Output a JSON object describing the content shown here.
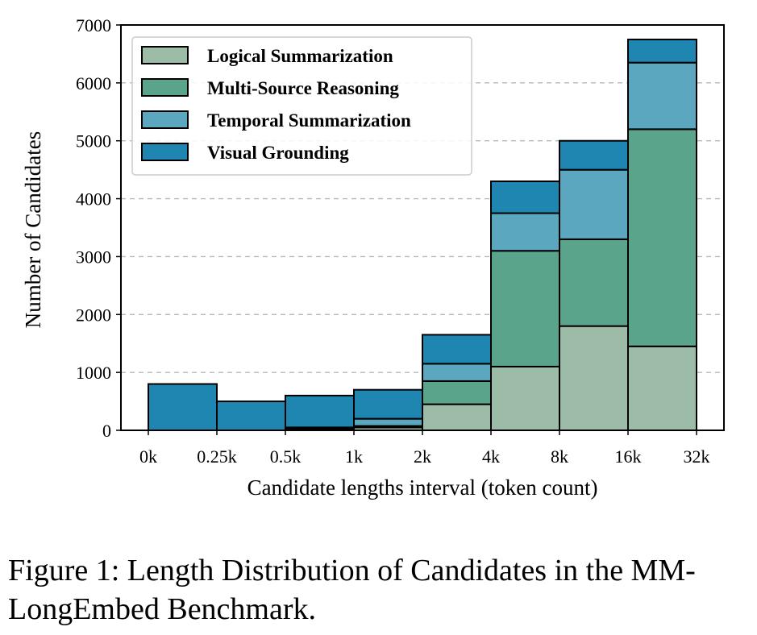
{
  "chart_data": {
    "type": "bar",
    "stacked": true,
    "categories": [
      "0k-0.25k",
      "0.25k-0.5k",
      "0.5k-1k",
      "1k-2k",
      "2k-4k",
      "4k-8k",
      "8k-16k",
      "16k-32k"
    ],
    "x_tick_labels": [
      "0k",
      "0.25k",
      "0.5k",
      "1k",
      "2k",
      "4k",
      "8k",
      "16k",
      "32k"
    ],
    "series": [
      {
        "name": "Logical Summarization",
        "color": "#9dbca8",
        "values": [
          0,
          0,
          25,
          50,
          450,
          1100,
          1800,
          1450
        ]
      },
      {
        "name": "Multi-Source Reasoning",
        "color": "#5aa48b",
        "values": [
          0,
          0,
          25,
          25,
          400,
          2000,
          1500,
          3750
        ]
      },
      {
        "name": "Temporal Summarization",
        "color": "#5ba7c0",
        "values": [
          0,
          0,
          0,
          125,
          300,
          650,
          1200,
          1150
        ]
      },
      {
        "name": "Visual Grounding",
        "color": "#1f86b1",
        "values": [
          800,
          500,
          550,
          500,
          500,
          550,
          500,
          400
        ]
      }
    ],
    "xlabel": "Candidate lengths interval (token count)",
    "ylabel": "Number of Candidates",
    "ylim": [
      0,
      7000
    ],
    "y_ticks": [
      0,
      1000,
      2000,
      3000,
      4000,
      5000,
      6000,
      7000
    ],
    "grid": "horizontal dashed",
    "legend_position": "upper-left"
  },
  "caption": "Figure 1: Length Distribution of Candidates in the MM-LongEmbed Benchmark."
}
